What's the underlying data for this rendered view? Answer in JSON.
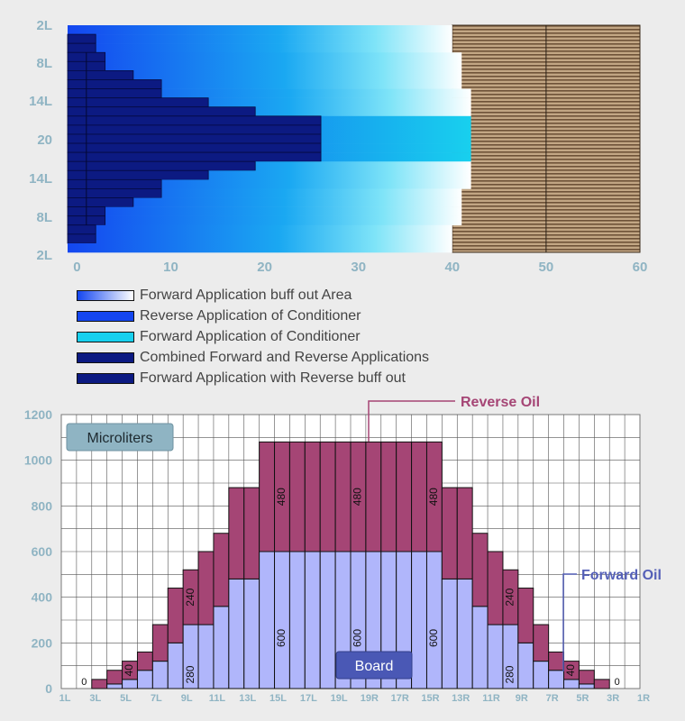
{
  "colors": {
    "background": "#ececec",
    "axis_text": "#8fb4c3",
    "reverse": "#a54575",
    "forward": "#b0b6fb",
    "brown": "#8a6d4e",
    "brown_light": "#c2a684",
    "navy": "#0c1a82",
    "royal": "#1446f0",
    "cyan": "#18d0ee",
    "reverse_label": "#a54575",
    "forward_label": "#5560b8",
    "board_box": "#4a58b5",
    "micro_box": "#8fb4c3"
  },
  "chart_data": [
    {
      "type": "bar",
      "orientation": "horizontal",
      "description_scope": "top",
      "y_tick_labels": [
        "2L",
        "8L",
        "14L",
        "20",
        "14L",
        "8L",
        "2L"
      ],
      "x_ticks": [
        0,
        10,
        20,
        30,
        40,
        50,
        60
      ],
      "xlim": [
        -1,
        60
      ],
      "legend_placement": "below",
      "legend": [
        {
          "label": "Forward Application buff out Area",
          "swatch": "gradient"
        },
        {
          "label": "Reverse Application of Conditioner",
          "swatch": "#1446f0"
        },
        {
          "label": "Forward Application of Conditioner",
          "swatch": "#18d0ee"
        },
        {
          "label": "Combined Forward and Reverse Applications",
          "swatch": "#0c1a82"
        },
        {
          "label": "Forward Application with Reverse buff out",
          "swatch": "#0c1a82"
        }
      ],
      "rows": [
        {
          "navy": 0,
          "white_end": 40
        },
        {
          "navy": 2,
          "white_end": 40
        },
        {
          "navy": 2,
          "white_end": 40
        },
        {
          "navy": 3,
          "white_end": 41
        },
        {
          "navy": 3,
          "white_end": 41
        },
        {
          "navy": 6,
          "white_end": 41
        },
        {
          "navy": 9,
          "white_end": 41
        },
        {
          "navy": 9,
          "white_end": 42
        },
        {
          "navy": 14,
          "white_end": 42
        },
        {
          "navy": 19,
          "white_end": 42
        },
        {
          "navy": 26,
          "white_end": 42
        },
        {
          "navy": 26,
          "white_end": 42
        },
        {
          "navy": 26,
          "white_end": 42
        },
        {
          "navy": 26,
          "white_end": 42
        },
        {
          "navy": 26,
          "white_end": 42
        },
        {
          "navy": 19,
          "white_end": 42
        },
        {
          "navy": 14,
          "white_end": 42
        },
        {
          "navy": 9,
          "white_end": 42
        },
        {
          "navy": 9,
          "white_end": 41
        },
        {
          "navy": 6,
          "white_end": 41
        },
        {
          "navy": 3,
          "white_end": 41
        },
        {
          "navy": 3,
          "white_end": 41
        },
        {
          "navy": 2,
          "white_end": 40
        },
        {
          "navy": 2,
          "white_end": 40
        },
        {
          "navy": 0,
          "white_end": 40
        }
      ],
      "brown_range": [
        40,
        60
      ]
    },
    {
      "type": "bar",
      "stacked": true,
      "ylim": [
        0,
        1200
      ],
      "y_ticks": [
        0,
        200,
        400,
        600,
        800,
        1000,
        1200
      ],
      "x_tick_labels": [
        "1L",
        "3L",
        "5L",
        "7L",
        "9L",
        "11L",
        "13L",
        "15L",
        "17L",
        "19L",
        "19R",
        "17R",
        "15R",
        "13R",
        "11R",
        "9R",
        "7R",
        "5R",
        "3R",
        "1R"
      ],
      "boxes": {
        "units": "Microliters",
        "board": "Board"
      },
      "annotations": {
        "reverse_oil": "Reverse Oil",
        "forward_oil": "Forward Oil"
      },
      "series": [
        {
          "name": "Forward Oil",
          "values": [
            0,
            0,
            0,
            20,
            40,
            80,
            120,
            200,
            280,
            280,
            360,
            480,
            480,
            600,
            600,
            600,
            600,
            600,
            600,
            600,
            600,
            600,
            600,
            600,
            600,
            480,
            480,
            360,
            280,
            280,
            200,
            120,
            80,
            40,
            20,
            0,
            0,
            0
          ]
        },
        {
          "name": "Reverse Oil",
          "values": [
            0,
            0,
            40,
            60,
            80,
            80,
            160,
            240,
            240,
            320,
            320,
            400,
            400,
            480,
            480,
            480,
            480,
            480,
            480,
            480,
            480,
            480,
            480,
            480,
            480,
            400,
            400,
            320,
            320,
            240,
            240,
            160,
            80,
            80,
            60,
            40,
            0,
            0
          ]
        }
      ],
      "bar_labels": [
        {
          "bar": 4,
          "value": "40"
        },
        {
          "bar": 8,
          "value": "240"
        },
        {
          "bar": 8,
          "value": "280",
          "segment": "forward"
        },
        {
          "bar": 14,
          "value": "480"
        },
        {
          "bar": 14,
          "value": "600",
          "segment": "forward"
        },
        {
          "bar": 19,
          "value": "480"
        },
        {
          "bar": 19,
          "value": "600",
          "segment": "forward"
        },
        {
          "bar": 24,
          "value": "480"
        },
        {
          "bar": 24,
          "value": "600",
          "segment": "forward"
        },
        {
          "bar": 29,
          "value": "240"
        },
        {
          "bar": 29,
          "value": "280",
          "segment": "forward"
        },
        {
          "bar": 33,
          "value": "40"
        }
      ],
      "zero_labels": [
        {
          "bar": 1,
          "value": "0"
        },
        {
          "bar": 36,
          "value": "0"
        }
      ]
    }
  ]
}
